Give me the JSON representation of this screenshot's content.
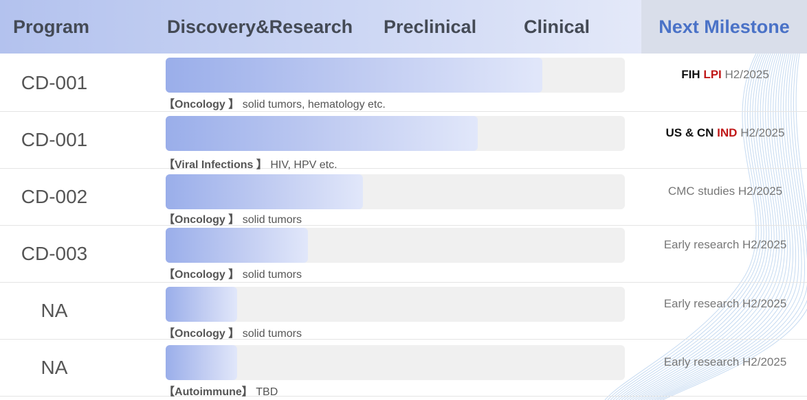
{
  "header": {
    "program": "Program",
    "discovery": "Discovery&Research",
    "preclinical": "Preclinical",
    "clinical": "Clinical",
    "next_milestone": "Next Milestone"
  },
  "rows": [
    {
      "program": "CD-001",
      "progress": 0.82,
      "area": "Oncology",
      "desc": "solid tumors, hematology etc.",
      "ms_prefix": "FIH",
      "ms_red": "LPI",
      "ms_rest": "H2/2025"
    },
    {
      "program": "CD-001",
      "progress": 0.68,
      "area": "Viral Infections",
      "desc": "HIV, HPV etc.",
      "ms_prefix": "US & CN",
      "ms_red": "IND",
      "ms_rest": "H2/2025"
    },
    {
      "program": "CD-002",
      "progress": 0.43,
      "area": "Oncology",
      "desc": "solid tumors",
      "ms_prefix": "",
      "ms_red": "",
      "ms_rest": "CMC studies H2/2025"
    },
    {
      "program": "CD-003",
      "progress": 0.31,
      "area": "Oncology",
      "desc": "solid tumors",
      "ms_prefix": "",
      "ms_red": "",
      "ms_rest": "Early research H2/2025"
    },
    {
      "program": "NA",
      "progress": 0.155,
      "area": "Oncology",
      "desc": "solid tumors",
      "ms_prefix": "",
      "ms_red": "",
      "ms_rest": "Early research H2/2025"
    },
    {
      "program": "NA",
      "progress": 0.155,
      "area": "Autoimmune",
      "desc": "TBD",
      "ms_prefix": "",
      "ms_red": "",
      "ms_rest": "Early research H2/2025"
    }
  ],
  "colors": {
    "accent": "#4a72c7",
    "milestone_red": "#c01818",
    "bar_start": "#9aaeea",
    "bar_end": "#e1e7fa"
  }
}
